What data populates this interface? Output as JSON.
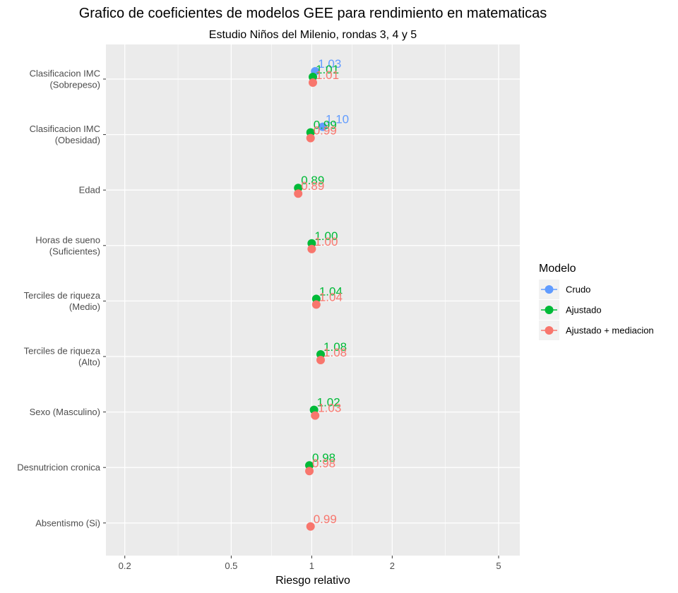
{
  "chart_data": {
    "type": "scatter",
    "title": "Grafico de coeficientes de modelos GEE para rendimiento en matematicas",
    "subtitle": "Estudio Niños del Milenio, rondas 3, 4 y 5",
    "xlabel": "Riesgo relativo",
    "ylabel": "",
    "x_scale": "log",
    "xlim": [
      0.17,
      6.0
    ],
    "x_ticks": [
      0.2,
      0.5,
      1,
      2,
      5
    ],
    "x_tick_labels": [
      "0.2",
      "0.5",
      "1",
      "2",
      "5"
    ],
    "categories": [
      [
        "Clasificacion IMC",
        "(Sobrepeso)"
      ],
      [
        "Clasificacion IMC",
        "(Obesidad)"
      ],
      [
        "Edad"
      ],
      [
        "Horas de sueno",
        "(Suficientes)"
      ],
      [
        "Terciles de riqueza",
        "(Medio)"
      ],
      [
        "Terciles de riqueza",
        "(Alto)"
      ],
      [
        "Sexo (Masculino)"
      ],
      [
        "Desnutricion cronica"
      ],
      [
        "Absentismo (Si)"
      ]
    ],
    "series": [
      {
        "name": "Crudo",
        "color": "#619CFF",
        "values": [
          1.03,
          1.1,
          null,
          null,
          null,
          null,
          null,
          null,
          null
        ],
        "labels": [
          "1.03",
          "1.10",
          null,
          null,
          null,
          null,
          null,
          null,
          null
        ]
      },
      {
        "name": "Ajustado",
        "color": "#00BA38",
        "values": [
          1.01,
          0.99,
          0.89,
          1.0,
          1.04,
          1.08,
          1.02,
          0.98,
          null
        ],
        "labels": [
          "1.01",
          "0.99",
          "0.89",
          "1.00",
          "1.04",
          "1.08",
          "1.02",
          "0.98",
          null
        ]
      },
      {
        "name": "Ajustado + mediacion",
        "color": "#F8766D",
        "values": [
          1.01,
          0.99,
          0.89,
          1.0,
          1.04,
          1.08,
          1.03,
          0.98,
          0.99
        ],
        "labels": [
          "1.01",
          "0.99",
          "0.89",
          "1.00",
          "1.04",
          "1.08",
          "1.03",
          "0.98",
          "0.99"
        ]
      }
    ],
    "legend": {
      "title": "Modelo",
      "position": "right"
    },
    "grid": true
  }
}
